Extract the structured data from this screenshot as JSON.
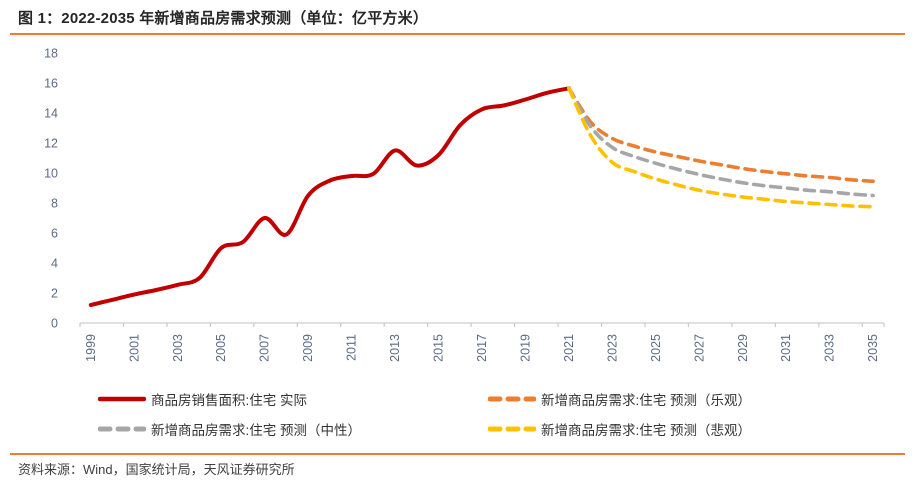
{
  "page": {
    "title": "图 1：2022-2035 年新增商品房需求预测（单位：亿平方米）",
    "source": "资料来源：Wind，国家统计局，天风证券研究所"
  },
  "colors": {
    "accent_rule": "#ED7D31",
    "title_text": "#262626",
    "footer_text": "#404040",
    "axis_line": "#D6D6D6",
    "tick_mark": "#C9C9C9",
    "axis_label": "#5B6B85",
    "legend_text": "#333333"
  },
  "chart_data": {
    "type": "line",
    "title": "图 1：2022-2035 年新增商品房需求预测（单位：亿平方米）",
    "unit": "亿平方米",
    "grid": false,
    "legend_position": "bottom",
    "ylim": [
      0,
      18
    ],
    "y_ticks": [
      0,
      2,
      4,
      6,
      8,
      10,
      12,
      14,
      16,
      18
    ],
    "x_first_year": 1999,
    "x_last_year": 2035,
    "x_tick_labels": [
      "1999",
      "2001",
      "2003",
      "2005",
      "2007",
      "2009",
      "2011",
      "2013",
      "2015",
      "2017",
      "2019",
      "2021",
      "2023",
      "2025",
      "2027",
      "2029",
      "2031",
      "2033",
      "2035"
    ],
    "series": [
      {
        "name": "商品房销售面积:住宅 实际",
        "style": "solid",
        "color": "#C00000",
        "years": [
          1999,
          2000,
          2001,
          2002,
          2003,
          2004,
          2005,
          2006,
          2007,
          2008,
          2009,
          2010,
          2011,
          2012,
          2013,
          2014,
          2015,
          2016,
          2017,
          2018,
          2019,
          2020,
          2021
        ],
        "values": [
          1.2,
          1.55,
          1.9,
          2.2,
          2.55,
          3.0,
          5.0,
          5.4,
          7.0,
          5.9,
          8.5,
          9.5,
          9.8,
          9.95,
          11.5,
          10.5,
          11.2,
          13.2,
          14.25,
          14.5,
          14.9,
          15.35,
          15.65
        ]
      },
      {
        "name": "新增商品房需求:住宅 预测（乐观）",
        "style": "dashed",
        "color": "#ED7D31",
        "years": [
          2021,
          2022,
          2023,
          2024,
          2025,
          2026,
          2027,
          2028,
          2029,
          2030,
          2031,
          2032,
          2033,
          2034,
          2035
        ],
        "values": [
          15.65,
          13.4,
          12.3,
          11.8,
          11.4,
          11.1,
          10.8,
          10.55,
          10.3,
          10.1,
          9.95,
          9.8,
          9.7,
          9.55,
          9.45
        ]
      },
      {
        "name": "新增商品房需求:住宅 预测（中性）",
        "style": "dashed",
        "color": "#A6A6A6",
        "years": [
          2021,
          2022,
          2023,
          2024,
          2025,
          2026,
          2027,
          2028,
          2029,
          2030,
          2031,
          2032,
          2033,
          2034,
          2035
        ],
        "values": [
          15.65,
          13.1,
          11.7,
          11.1,
          10.65,
          10.25,
          9.9,
          9.6,
          9.35,
          9.15,
          9.0,
          8.85,
          8.75,
          8.6,
          8.5
        ]
      },
      {
        "name": "新增商品房需求:住宅 预测（悲观）",
        "style": "dashed",
        "color": "#FFC000",
        "years": [
          2021,
          2022,
          2023,
          2024,
          2025,
          2026,
          2027,
          2028,
          2029,
          2030,
          2031,
          2032,
          2033,
          2034,
          2035
        ],
        "values": [
          15.65,
          12.5,
          10.7,
          10.1,
          9.6,
          9.2,
          8.85,
          8.6,
          8.4,
          8.25,
          8.1,
          8.0,
          7.9,
          7.8,
          7.75
        ]
      }
    ]
  }
}
